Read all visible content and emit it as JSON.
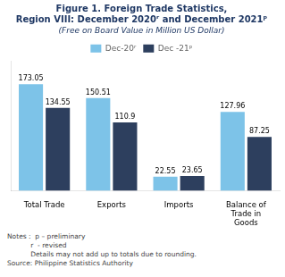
{
  "chart_data": {
    "type": "bar",
    "title": "Figure 1. Foreign Trade Statistics,\nRegion VIII: December 2020ʳ and December 2021ᵖ",
    "subtitle": "(Free on Board Value in Million US Dollar)",
    "categories": [
      "Total Trade",
      "Exports",
      "Imports",
      "Balance of\nTrade in\nGoods"
    ],
    "series": [
      {
        "name": "Dec-20ʳ",
        "color": "#7dc3e8",
        "values": [
          173.05,
          150.51,
          22.55,
          127.96
        ]
      },
      {
        "name": "Dec -21ᵖ",
        "color": "#2d3f5e",
        "values": [
          134.55,
          110.9,
          23.65,
          87.25
        ]
      }
    ],
    "ylim": [
      0,
      210
    ],
    "grid": false,
    "legend": "top",
    "data_labels": true,
    "tick_labels": "x",
    "annotations": [
      "Notes :  p – preliminary",
      "           r  - revised",
      "           Details may not add up to totals due to rounding.",
      "Source: Philippine Statistics Authority"
    ]
  }
}
